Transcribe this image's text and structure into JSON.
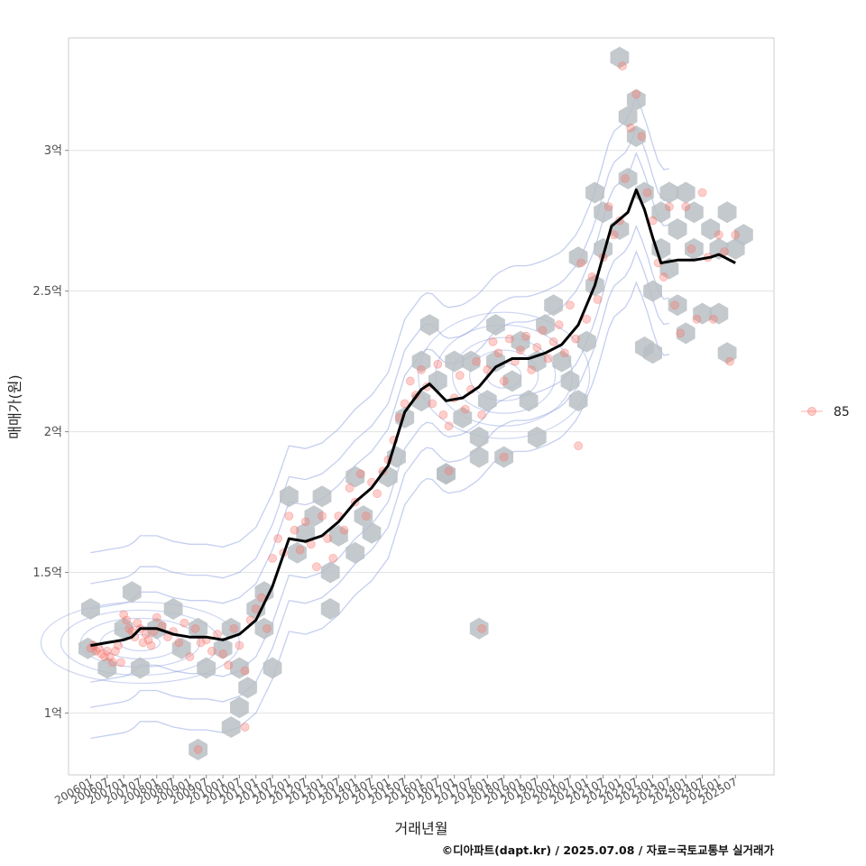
{
  "chart_data": {
    "type": "scatter",
    "xlabel": "거래년월",
    "ylabel": "매매가(원)",
    "caption": "©디아파트(dapt.kr) / 2025.07.08 / 자료=국토교통부 실거래가",
    "legend": {
      "position": "right",
      "entries": [
        "85"
      ]
    },
    "grid": true,
    "y_unit": "억원",
    "ylim": [
      0.78,
      3.4
    ],
    "yticks": [
      {
        "value": 1.0,
        "label": "1억"
      },
      {
        "value": 1.5,
        "label": "1.5억"
      },
      {
        "value": 2.0,
        "label": "2억"
      },
      {
        "value": 2.5,
        "label": "2.5억"
      },
      {
        "value": 3.0,
        "label": "3억"
      }
    ],
    "xlim": [
      "2005-05",
      "2026-09"
    ],
    "xticks": [
      "200601",
      "200607",
      "200701",
      "200707",
      "200801",
      "200807",
      "200901",
      "200907",
      "201001",
      "201007",
      "201101",
      "201107",
      "201201",
      "201207",
      "201301",
      "201307",
      "201401",
      "201407",
      "201501",
      "201507",
      "201601",
      "201607",
      "201701",
      "201707",
      "201801",
      "201807",
      "201901",
      "201907",
      "202001",
      "202007",
      "202101",
      "202107",
      "202201",
      "202207",
      "202301",
      "202307",
      "202401",
      "202407",
      "202501",
      "202507"
    ],
    "trend_line": [
      [
        "2006-01",
        1.24
      ],
      [
        "2006-07",
        1.25
      ],
      [
        "2007-01",
        1.26
      ],
      [
        "2007-04",
        1.27
      ],
      [
        "2007-07",
        1.3
      ],
      [
        "2008-01",
        1.3
      ],
      [
        "2008-07",
        1.28
      ],
      [
        "2009-01",
        1.27
      ],
      [
        "2009-07",
        1.27
      ],
      [
        "2010-01",
        1.26
      ],
      [
        "2010-07",
        1.28
      ],
      [
        "2011-01",
        1.33
      ],
      [
        "2011-07",
        1.45
      ],
      [
        "2012-01",
        1.62
      ],
      [
        "2012-07",
        1.61
      ],
      [
        "2013-01",
        1.63
      ],
      [
        "2013-07",
        1.68
      ],
      [
        "2014-01",
        1.75
      ],
      [
        "2014-07",
        1.8
      ],
      [
        "2015-01",
        1.88
      ],
      [
        "2015-07",
        2.07
      ],
      [
        "2016-01",
        2.15
      ],
      [
        "2016-04",
        2.17
      ],
      [
        "2016-10",
        2.11
      ],
      [
        "2017-04",
        2.12
      ],
      [
        "2017-10",
        2.16
      ],
      [
        "2018-04",
        2.23
      ],
      [
        "2018-10",
        2.26
      ],
      [
        "2019-04",
        2.26
      ],
      [
        "2019-10",
        2.28
      ],
      [
        "2020-04",
        2.31
      ],
      [
        "2020-10",
        2.38
      ],
      [
        "2021-04",
        2.52
      ],
      [
        "2021-10",
        2.73
      ],
      [
        "2022-04",
        2.78
      ],
      [
        "2022-07",
        2.86
      ],
      [
        "2022-10",
        2.79
      ],
      [
        "2023-01",
        2.69
      ],
      [
        "2023-04",
        2.6
      ],
      [
        "2023-10",
        2.61
      ],
      [
        "2024-04",
        2.61
      ],
      [
        "2024-10",
        2.62
      ],
      [
        "2025-01",
        2.63
      ],
      [
        "2025-07",
        2.6
      ]
    ],
    "points": [
      [
        "2006-01",
        1.23
      ],
      [
        "2006-02",
        1.24
      ],
      [
        "2006-03",
        1.22
      ],
      [
        "2006-04",
        1.23
      ],
      [
        "2006-05",
        1.21
      ],
      [
        "2006-06",
        1.2
      ],
      [
        "2006-07",
        1.22
      ],
      [
        "2006-08",
        1.2
      ],
      [
        "2006-09",
        1.18
      ],
      [
        "2006-10",
        1.22
      ],
      [
        "2006-11",
        1.24
      ],
      [
        "2006-12",
        1.18
      ],
      [
        "2007-01",
        1.35
      ],
      [
        "2007-02",
        1.33
      ],
      [
        "2007-03",
        1.3
      ],
      [
        "2007-04",
        1.29
      ],
      [
        "2007-05",
        1.27
      ],
      [
        "2007-06",
        1.32
      ],
      [
        "2007-07",
        1.3
      ],
      [
        "2007-08",
        1.25
      ],
      [
        "2007-09",
        1.28
      ],
      [
        "2007-10",
        1.26
      ],
      [
        "2007-11",
        1.24
      ],
      [
        "2007-12",
        1.29
      ],
      [
        "2008-01",
        1.34
      ],
      [
        "2008-03",
        1.31
      ],
      [
        "2008-05",
        1.27
      ],
      [
        "2008-07",
        1.29
      ],
      [
        "2008-09",
        1.25
      ],
      [
        "2008-11",
        1.32
      ],
      [
        "2009-01",
        1.2
      ],
      [
        "2009-03",
        1.3
      ],
      [
        "2009-05",
        1.25
      ],
      [
        "2009-07",
        1.26
      ],
      [
        "2009-09",
        1.22
      ],
      [
        "2009-11",
        1.28
      ],
      [
        "2010-01",
        1.21
      ],
      [
        "2010-03",
        1.17
      ],
      [
        "2010-05",
        1.3
      ],
      [
        "2010-07",
        1.24
      ],
      [
        "2010-09",
        1.15
      ],
      [
        "2010-11",
        1.33
      ],
      [
        "2011-01",
        1.37
      ],
      [
        "2011-03",
        1.41
      ],
      [
        "2011-05",
        1.3
      ],
      [
        "2011-07",
        1.55
      ],
      [
        "2011-09",
        1.62
      ],
      [
        "2011-11",
        1.57
      ],
      [
        "2012-01",
        1.7
      ],
      [
        "2012-03",
        1.65
      ],
      [
        "2012-05",
        1.58
      ],
      [
        "2012-07",
        1.68
      ],
      [
        "2012-09",
        1.6
      ],
      [
        "2012-11",
        1.52
      ],
      [
        "2013-01",
        1.7
      ],
      [
        "2013-03",
        1.62
      ],
      [
        "2013-05",
        1.55
      ],
      [
        "2013-07",
        1.7
      ],
      [
        "2013-09",
        1.65
      ],
      [
        "2013-11",
        1.8
      ],
      [
        "2014-01",
        1.75
      ],
      [
        "2014-03",
        1.85
      ],
      [
        "2014-05",
        1.7
      ],
      [
        "2014-07",
        1.82
      ],
      [
        "2014-09",
        1.78
      ],
      [
        "2014-11",
        1.86
      ],
      [
        "2015-01",
        1.9
      ],
      [
        "2015-03",
        1.97
      ],
      [
        "2015-05",
        2.05
      ],
      [
        "2015-07",
        2.1
      ],
      [
        "2015-09",
        2.18
      ],
      [
        "2015-11",
        2.13
      ],
      [
        "2016-01",
        2.22
      ],
      [
        "2016-03",
        2.16
      ],
      [
        "2016-05",
        2.1
      ],
      [
        "2016-07",
        2.24
      ],
      [
        "2016-09",
        2.06
      ],
      [
        "2016-11",
        2.02
      ],
      [
        "2017-01",
        2.12
      ],
      [
        "2017-03",
        2.2
      ],
      [
        "2017-05",
        2.08
      ],
      [
        "2017-07",
        2.15
      ],
      [
        "2017-09",
        2.25
      ],
      [
        "2017-11",
        2.06
      ],
      [
        "2018-01",
        2.22
      ],
      [
        "2018-03",
        2.32
      ],
      [
        "2018-05",
        2.28
      ],
      [
        "2018-07",
        2.18
      ],
      [
        "2018-09",
        2.33
      ],
      [
        "2018-11",
        2.25
      ],
      [
        "2019-01",
        2.29
      ],
      [
        "2019-03",
        2.34
      ],
      [
        "2019-05",
        2.22
      ],
      [
        "2019-07",
        2.3
      ],
      [
        "2019-09",
        2.36
      ],
      [
        "2019-11",
        2.26
      ],
      [
        "2020-01",
        2.32
      ],
      [
        "2020-03",
        2.38
      ],
      [
        "2020-05",
        2.28
      ],
      [
        "2020-07",
        2.45
      ],
      [
        "2020-09",
        2.33
      ],
      [
        "2020-11",
        2.6
      ],
      [
        "2021-01",
        2.4
      ],
      [
        "2021-03",
        2.55
      ],
      [
        "2021-05",
        2.47
      ],
      [
        "2021-07",
        2.62
      ],
      [
        "2021-09",
        2.8
      ],
      [
        "2021-11",
        2.7
      ],
      [
        "2022-01",
        2.75
      ],
      [
        "2022-03",
        2.9
      ],
      [
        "2022-05",
        3.08
      ],
      [
        "2022-07",
        3.2
      ],
      [
        "2022-09",
        3.05
      ],
      [
        "2022-11",
        2.85
      ],
      [
        "2023-01",
        2.75
      ],
      [
        "2023-03",
        2.6
      ],
      [
        "2023-05",
        2.55
      ],
      [
        "2023-07",
        2.8
      ],
      [
        "2023-09",
        2.45
      ],
      [
        "2023-11",
        2.35
      ],
      [
        "2024-01",
        2.8
      ],
      [
        "2024-03",
        2.65
      ],
      [
        "2024-05",
        2.4
      ],
      [
        "2024-07",
        2.85
      ],
      [
        "2024-09",
        2.62
      ],
      [
        "2024-11",
        2.4
      ],
      [
        "2025-01",
        2.7
      ],
      [
        "2025-03",
        2.64
      ],
      [
        "2025-05",
        2.25
      ],
      [
        "2025-07",
        2.7
      ],
      [
        "2016-11",
        1.86
      ],
      [
        "2018-07",
        1.91
      ],
      [
        "2017-11",
        1.3
      ],
      [
        "2022-02",
        3.3
      ],
      [
        "2009-04",
        0.87
      ],
      [
        "2010-09",
        0.95
      ],
      [
        "2020-10",
        1.95
      ]
    ],
    "hexbins": [
      [
        "2006-01",
        1.37
      ],
      [
        "2005-12",
        1.23
      ],
      [
        "2006-07",
        1.16
      ],
      [
        "2007-01",
        1.3
      ],
      [
        "2007-04",
        1.43
      ],
      [
        "2007-07",
        1.16
      ],
      [
        "2008-01",
        1.3
      ],
      [
        "2008-07",
        1.37
      ],
      [
        "2008-10",
        1.23
      ],
      [
        "2009-04",
        1.3
      ],
      [
        "2009-07",
        1.16
      ],
      [
        "2009-04",
        0.87
      ],
      [
        "2010-04",
        1.3
      ],
      [
        "2010-01",
        1.23
      ],
      [
        "2010-07",
        1.16
      ],
      [
        "2010-07",
        1.02
      ],
      [
        "2010-10",
        1.09
      ],
      [
        "2010-04",
        0.95
      ],
      [
        "2011-01",
        1.37
      ],
      [
        "2011-04",
        1.43
      ],
      [
        "2011-04",
        1.3
      ],
      [
        "2011-07",
        1.16
      ],
      [
        "2012-01",
        1.77
      ],
      [
        "2012-04",
        1.57
      ],
      [
        "2012-07",
        1.64
      ],
      [
        "2012-10",
        1.7
      ],
      [
        "2013-01",
        1.77
      ],
      [
        "2013-04",
        1.5
      ],
      [
        "2013-04",
        1.37
      ],
      [
        "2013-07",
        1.63
      ],
      [
        "2014-01",
        1.57
      ],
      [
        "2014-01",
        1.84
      ],
      [
        "2014-04",
        1.7
      ],
      [
        "2014-07",
        1.64
      ],
      [
        "2015-01",
        1.84
      ],
      [
        "2015-04",
        1.91
      ],
      [
        "2015-07",
        2.05
      ],
      [
        "2016-01",
        2.11
      ],
      [
        "2016-01",
        2.25
      ],
      [
        "2016-04",
        2.38
      ],
      [
        "2016-07",
        2.18
      ],
      [
        "2016-10",
        1.85
      ],
      [
        "2017-01",
        2.25
      ],
      [
        "2017-04",
        2.05
      ],
      [
        "2017-07",
        2.25
      ],
      [
        "2017-10",
        1.98
      ],
      [
        "2018-01",
        2.11
      ],
      [
        "2018-04",
        2.25
      ],
      [
        "2018-04",
        2.38
      ],
      [
        "2018-07",
        1.91
      ],
      [
        "2018-10",
        2.18
      ],
      [
        "2019-01",
        2.32
      ],
      [
        "2019-04",
        2.11
      ],
      [
        "2019-07",
        2.25
      ],
      [
        "2019-07",
        1.98
      ],
      [
        "2019-10",
        2.38
      ],
      [
        "2020-01",
        2.45
      ],
      [
        "2020-04",
        2.25
      ],
      [
        "2020-07",
        2.18
      ],
      [
        "2020-10",
        2.11
      ],
      [
        "2020-10",
        2.62
      ],
      [
        "2021-01",
        2.32
      ],
      [
        "2021-04",
        2.52
      ],
      [
        "2021-07",
        2.65
      ],
      [
        "2021-04",
        2.85
      ],
      [
        "2021-07",
        2.78
      ],
      [
        "2022-01",
        2.72
      ],
      [
        "2022-04",
        2.9
      ],
      [
        "2022-04",
        3.12
      ],
      [
        "2022-07",
        3.05
      ],
      [
        "2022-07",
        3.18
      ],
      [
        "2022-01",
        3.33
      ],
      [
        "2022-10",
        2.85
      ],
      [
        "2023-01",
        2.5
      ],
      [
        "2023-04",
        2.78
      ],
      [
        "2023-04",
        2.65
      ],
      [
        "2023-07",
        2.85
      ],
      [
        "2023-07",
        2.58
      ],
      [
        "2023-10",
        2.45
      ],
      [
        "2023-10",
        2.72
      ],
      [
        "2024-01",
        2.35
      ],
      [
        "2024-01",
        2.85
      ],
      [
        "2024-04",
        2.78
      ],
      [
        "2024-04",
        2.65
      ],
      [
        "2024-07",
        2.42
      ],
      [
        "2024-10",
        2.72
      ],
      [
        "2025-01",
        2.65
      ],
      [
        "2025-01",
        2.42
      ],
      [
        "2025-04",
        2.78
      ],
      [
        "2025-04",
        2.28
      ],
      [
        "2025-07",
        2.65
      ],
      [
        "2025-10",
        2.7
      ],
      [
        "2022-10",
        2.3
      ],
      [
        "2023-01",
        2.28
      ],
      [
        "2017-10",
        1.3
      ],
      [
        "2017-10",
        1.91
      ],
      [
        "2016-10",
        1.85
      ]
    ]
  }
}
